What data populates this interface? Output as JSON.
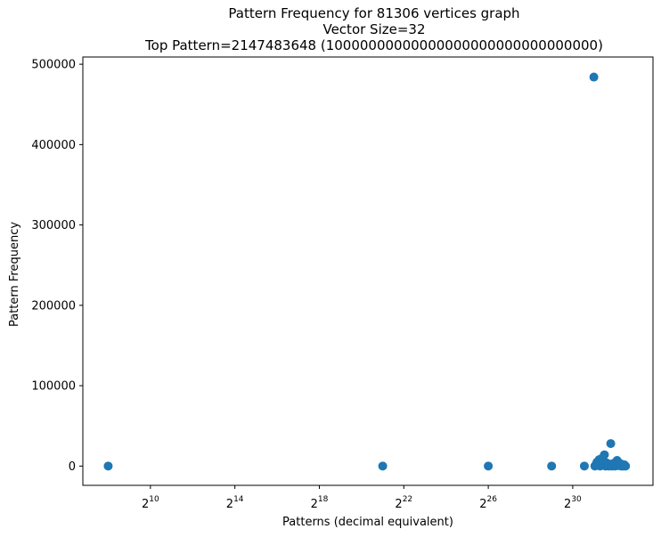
{
  "chart_data": {
    "type": "scatter",
    "title_lines": [
      "Pattern Frequency for 81306 vertices graph",
      "Vector Size=32",
      "Top Pattern=2147483648 (10000000000000000000000000000000)"
    ],
    "xlabel": "Patterns (decimal equivalent)",
    "ylabel": "Pattern Frequency",
    "xscale": "log2",
    "x_ticks": [
      {
        "base": "2",
        "exp": "10",
        "log2": 10
      },
      {
        "base": "2",
        "exp": "14",
        "log2": 14
      },
      {
        "base": "2",
        "exp": "18",
        "log2": 18
      },
      {
        "base": "2",
        "exp": "22",
        "log2": 22
      },
      {
        "base": "2",
        "exp": "26",
        "log2": 26
      },
      {
        "base": "2",
        "exp": "30",
        "log2": 30
      }
    ],
    "xlim_log2": [
      6.8,
      33.8
    ],
    "y_ticks": [
      "0",
      "100000",
      "200000",
      "300000",
      "400000",
      "500000"
    ],
    "y_tick_values": [
      0,
      100000,
      200000,
      300000,
      400000,
      500000
    ],
    "ylim": [
      -24000,
      509000
    ],
    "marker_color": "#1f77b4",
    "points_log2": [
      [
        8,
        0
      ],
      [
        21,
        0
      ],
      [
        26,
        0
      ],
      [
        29,
        0
      ],
      [
        30.55,
        0
      ],
      [
        31,
        484000
      ],
      [
        31.05,
        0
      ],
      [
        31.1,
        2000
      ],
      [
        31.15,
        5000
      ],
      [
        31.2,
        1000
      ],
      [
        31.25,
        8000
      ],
      [
        31.3,
        0
      ],
      [
        31.35,
        3000
      ],
      [
        31.4,
        10000
      ],
      [
        31.5,
        14000
      ],
      [
        31.55,
        0
      ],
      [
        31.6,
        4000
      ],
      [
        31.65,
        1500
      ],
      [
        31.7,
        0
      ],
      [
        31.75,
        2500
      ],
      [
        31.8,
        28000
      ],
      [
        31.85,
        0
      ],
      [
        31.9,
        1000
      ],
      [
        31.95,
        3500
      ],
      [
        32.0,
        0
      ],
      [
        32.05,
        2000
      ],
      [
        32.1,
        7000
      ],
      [
        32.15,
        500
      ],
      [
        32.2,
        4000
      ],
      [
        32.25,
        1000
      ],
      [
        32.3,
        0
      ],
      [
        32.35,
        2000
      ],
      [
        32.4,
        0
      ],
      [
        32.45,
        1500
      ],
      [
        32.5,
        0
      ]
    ]
  }
}
